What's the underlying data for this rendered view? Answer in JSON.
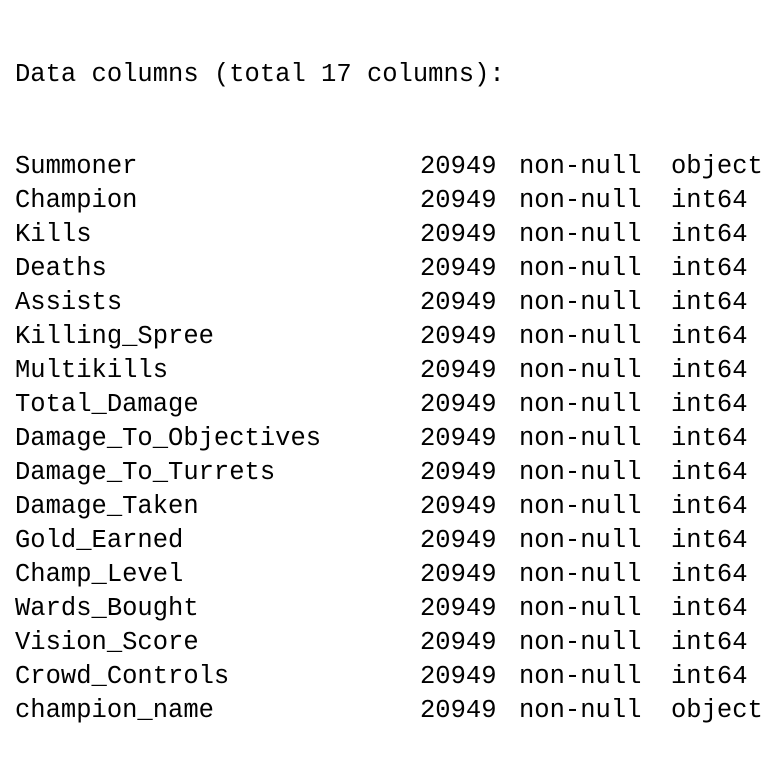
{
  "header": "Data columns (total 17 columns):",
  "columns": [
    {
      "name": "Summoner",
      "count": "20949",
      "nullity": "non-null",
      "dtype": "object"
    },
    {
      "name": "Champion",
      "count": "20949",
      "nullity": "non-null",
      "dtype": "int64"
    },
    {
      "name": "Kills",
      "count": "20949",
      "nullity": "non-null",
      "dtype": "int64"
    },
    {
      "name": "Deaths",
      "count": "20949",
      "nullity": "non-null",
      "dtype": "int64"
    },
    {
      "name": "Assists",
      "count": "20949",
      "nullity": "non-null",
      "dtype": "int64"
    },
    {
      "name": "Killing_Spree",
      "count": "20949",
      "nullity": "non-null",
      "dtype": "int64"
    },
    {
      "name": "Multikills",
      "count": "20949",
      "nullity": "non-null",
      "dtype": "int64"
    },
    {
      "name": "Total_Damage",
      "count": "20949",
      "nullity": "non-null",
      "dtype": "int64"
    },
    {
      "name": "Damage_To_Objectives",
      "count": "20949",
      "nullity": "non-null",
      "dtype": "int64"
    },
    {
      "name": "Damage_To_Turrets",
      "count": "20949",
      "nullity": "non-null",
      "dtype": "int64"
    },
    {
      "name": "Damage_Taken",
      "count": "20949",
      "nullity": "non-null",
      "dtype": "int64"
    },
    {
      "name": "Gold_Earned",
      "count": "20949",
      "nullity": "non-null",
      "dtype": "int64"
    },
    {
      "name": "Champ_Level",
      "count": "20949",
      "nullity": "non-null",
      "dtype": "int64"
    },
    {
      "name": "Wards_Bought",
      "count": "20949",
      "nullity": "non-null",
      "dtype": "int64"
    },
    {
      "name": "Vision_Score",
      "count": "20949",
      "nullity": "non-null",
      "dtype": "int64"
    },
    {
      "name": "Crowd_Controls",
      "count": "20949",
      "nullity": "non-null",
      "dtype": "int64"
    },
    {
      "name": "champion_name",
      "count": "20949",
      "nullity": "non-null",
      "dtype": "object"
    }
  ]
}
